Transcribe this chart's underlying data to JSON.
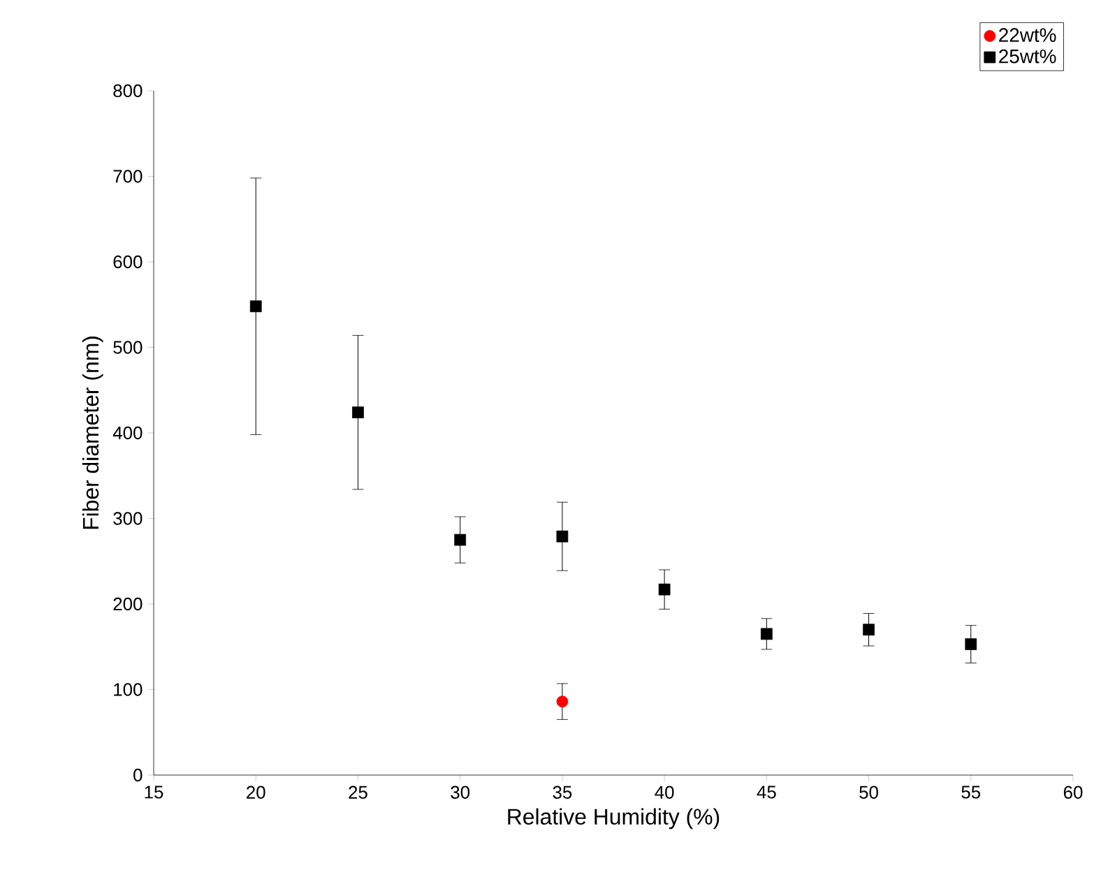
{
  "chart_data": {
    "type": "scatter",
    "xlabel": "Relative Humidity (%)",
    "ylabel": "Fiber diameter (nm)",
    "xlim": [
      15,
      60
    ],
    "xticks": [
      15,
      20,
      25,
      30,
      35,
      40,
      45,
      50,
      55,
      60
    ],
    "ylim": [
      0,
      800
    ],
    "yticks": [
      0,
      100,
      200,
      300,
      400,
      500,
      600,
      700,
      800
    ],
    "series": [
      {
        "name": "22wt%",
        "color": "#ff0000",
        "marker": "circle",
        "x": [
          35
        ],
        "values": [
          86
        ],
        "errors": [
          21
        ]
      },
      {
        "name": "25wt%",
        "color": "#000000",
        "marker": "square",
        "x": [
          20,
          25,
          30,
          35,
          40,
          45,
          50,
          55
        ],
        "values": [
          548,
          424,
          275,
          279,
          217,
          165,
          170,
          153
        ],
        "errors": [
          150,
          90,
          27,
          40,
          23,
          18,
          19,
          22
        ]
      }
    ],
    "legend": "top right",
    "grid": false
  }
}
